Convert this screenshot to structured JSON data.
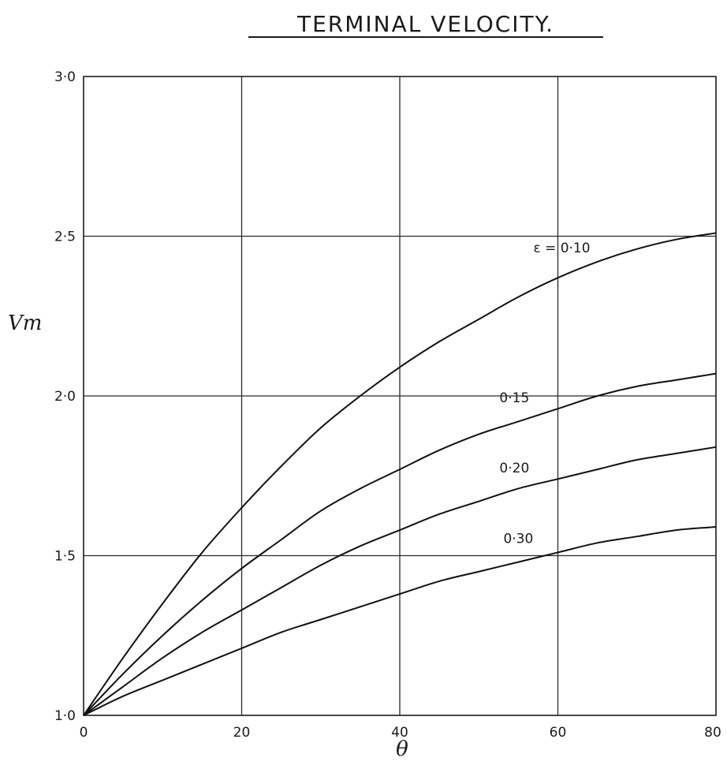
{
  "chart_data": {
    "type": "line",
    "title": "TERMINAL VELOCITY.",
    "xlabel": "θ",
    "ylabel": "Vm",
    "xlim": [
      0,
      80
    ],
    "ylim": [
      1.0,
      3.0
    ],
    "x_ticks": [
      0,
      20,
      40,
      60,
      80
    ],
    "x_tick_labels": [
      "0",
      "20",
      "40",
      "60",
      "80"
    ],
    "y_ticks": [
      1.0,
      1.5,
      2.0,
      2.5,
      3.0
    ],
    "y_tick_labels": [
      "1·0",
      "1·5",
      "2·0",
      "2·5",
      "3·0"
    ],
    "grid": true,
    "x": [
      0,
      5,
      10,
      15,
      20,
      25,
      30,
      35,
      40,
      45,
      50,
      55,
      60,
      65,
      70,
      75,
      80
    ],
    "series": [
      {
        "name": "ε = 0·10",
        "label": "ε = 0·10",
        "values": [
          1.0,
          1.18,
          1.35,
          1.51,
          1.65,
          1.78,
          1.9,
          2.0,
          2.09,
          2.17,
          2.24,
          2.31,
          2.37,
          2.42,
          2.46,
          2.49,
          2.51
        ]
      },
      {
        "name": "0·15",
        "label": "0·15",
        "values": [
          1.0,
          1.13,
          1.25,
          1.36,
          1.46,
          1.55,
          1.64,
          1.71,
          1.77,
          1.83,
          1.88,
          1.92,
          1.96,
          2.0,
          2.03,
          2.05,
          2.07
        ]
      },
      {
        "name": "0·20",
        "label": "0·20",
        "values": [
          1.0,
          1.09,
          1.18,
          1.26,
          1.33,
          1.4,
          1.47,
          1.53,
          1.58,
          1.63,
          1.67,
          1.71,
          1.74,
          1.77,
          1.8,
          1.82,
          1.84
        ]
      },
      {
        "name": "0·30",
        "label": "0·30",
        "values": [
          1.0,
          1.06,
          1.11,
          1.16,
          1.21,
          1.26,
          1.3,
          1.34,
          1.38,
          1.42,
          1.45,
          1.48,
          1.51,
          1.54,
          1.56,
          1.58,
          1.59
        ]
      }
    ]
  }
}
